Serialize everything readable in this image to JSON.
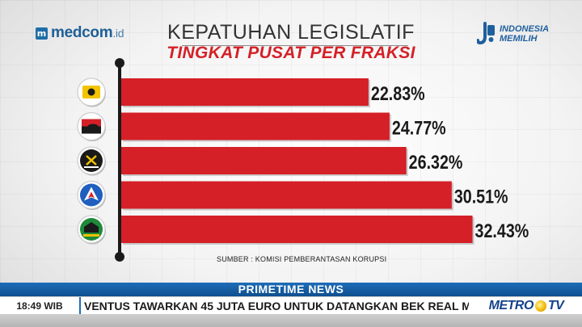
{
  "header": {
    "brand_left": "medcom",
    "brand_left_suffix": ".id",
    "brand_right_line1": "INDONESIA",
    "brand_right_line2": "MEMILIH"
  },
  "chart_data": {
    "type": "bar",
    "orientation": "horizontal",
    "title": "KEPATUHAN LEGISLATIF",
    "subtitle": "TINGKAT PUSAT PER FRAKSI",
    "categories": [
      "",
      "",
      "",
      "",
      ""
    ],
    "category_icons": [
      "golkar-party-logo-icon",
      "pdip-party-logo-icon",
      "pks-party-logo-icon",
      "demokrat-party-logo-icon",
      "ppp-party-logo-icon"
    ],
    "values": [
      22.83,
      24.77,
      26.32,
      30.51,
      32.43
    ],
    "value_labels": [
      "22.83%",
      "24.77%",
      "26.32%",
      "30.51%",
      "32.43%"
    ],
    "value_suffix": "%",
    "xlim": [
      0,
      40
    ],
    "grid": false,
    "bar_color": "#d52027",
    "source": "SUMBER : KOMISI PEMBERANTASAN KORUPSI"
  },
  "broadcast": {
    "program": "PRIMETIME NEWS",
    "time": "18:49 WIB",
    "ticker": "VENTUS TAWARKAN 45 JUTA EURO UNTUK DATANGKAN BEK REAL MADRID, M",
    "channel": "METRO",
    "channel_suffix": "TV",
    "program_color": "#1d6db8"
  }
}
